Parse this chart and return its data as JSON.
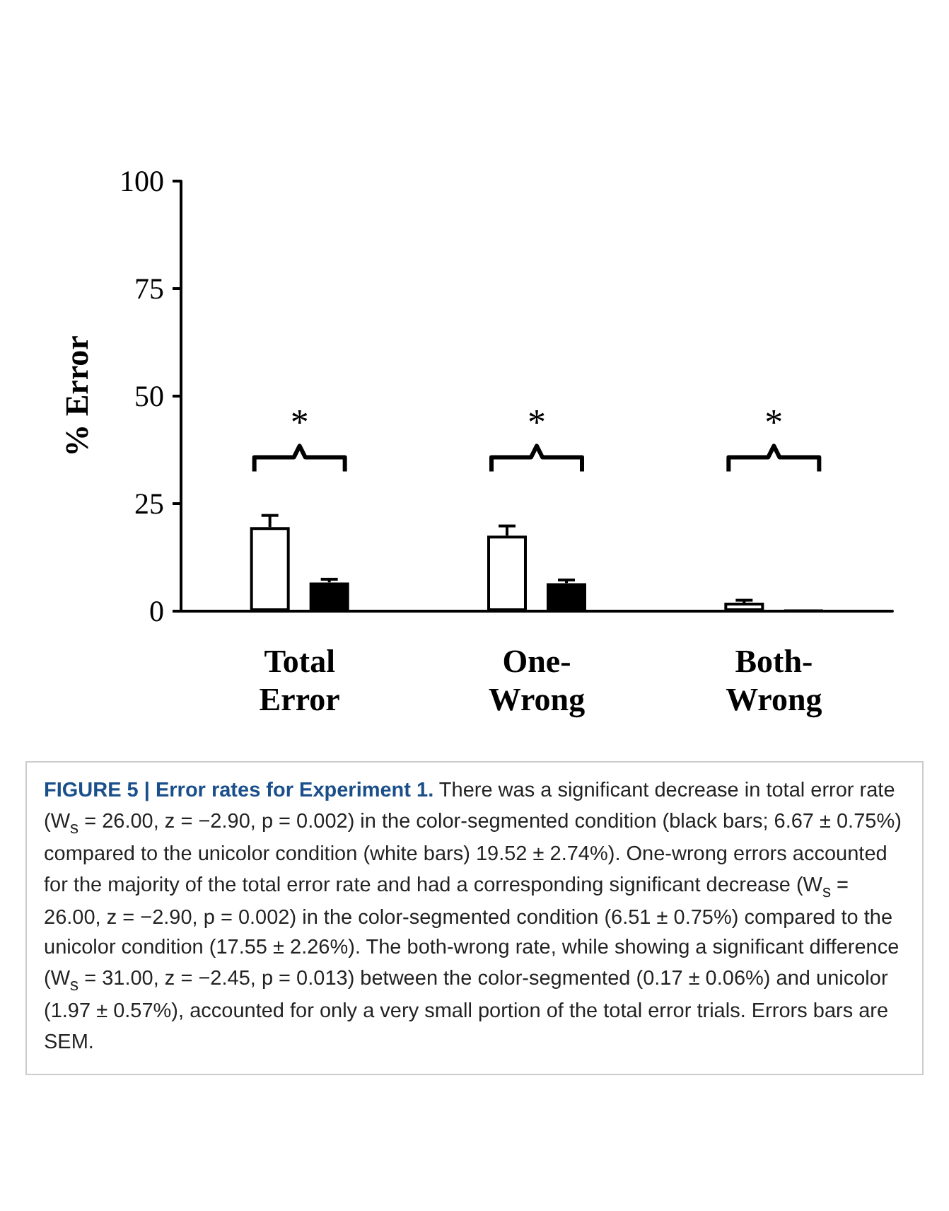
{
  "chart_data": {
    "type": "bar",
    "title": "FIGURE 5 | Error rates for Experiment 1.",
    "ylabel": "% Error",
    "categories": [
      "Total\nError",
      "One-\nWrong",
      "Both-\nWrong"
    ],
    "series": [
      {
        "color": "#ffffff",
        "values": [
          19.52,
          17.55,
          1.97
        ],
        "errors": [
          [
            19.52,
            22.26
          ],
          [
            17.55,
            19.81
          ],
          [
            1.97,
            2.54
          ]
        ]
      },
      {
        "color": "#000000",
        "values": [
          6.67,
          6.51,
          0.17
        ],
        "errors": [
          [
            6.67,
            7.42
          ],
          [
            6.51,
            7.26
          ],
          null
        ]
      }
    ],
    "ylim": [
      0,
      100
    ],
    "yticks": [
      0,
      25,
      50,
      75,
      100
    ],
    "grid": false,
    "annotations": [
      "*",
      "*",
      "*",
      "There was a significant decrease in total error rate (W$_{s}$ = 26.00, z = −2.90, p = 0.002) in the color-segmented condition (black bars; 6.67 ± 0.75%) compared to the unicolor condition (white bars) 19.52 ± 2.74%). One-wrong errors accounted for the majority of the total error rate and had a corresponding significant decrease (W$_{s}$ = 26.00, z = −2.90, p = 0.002) in the color-segmented condition (6.51 ± 0.75%) compared to the unicolor condition (17.55 ± 2.26%). The both-wrong rate, while showing a significant difference (W$_{s}$ = 31.00, z = −2.45, p = 0.013) between the color-segmented (0.17 ± 0.06%) and unicolor (1.97 ± 0.57%), accounted for only a very small portion of the total error trials. Errors bars are SEM."
    ]
  }
}
